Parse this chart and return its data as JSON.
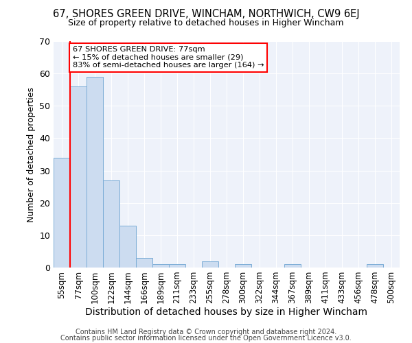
{
  "title": "67, SHORES GREEN DRIVE, WINCHAM, NORTHWICH, CW9 6EJ",
  "subtitle": "Size of property relative to detached houses in Higher Wincham",
  "xlabel": "Distribution of detached houses by size in Higher Wincham",
  "ylabel": "Number of detached properties",
  "categories": [
    "55sqm",
    "77sqm",
    "100sqm",
    "122sqm",
    "144sqm",
    "166sqm",
    "189sqm",
    "211sqm",
    "233sqm",
    "255sqm",
    "278sqm",
    "300sqm",
    "322sqm",
    "344sqm",
    "367sqm",
    "389sqm",
    "411sqm",
    "433sqm",
    "456sqm",
    "478sqm",
    "500sqm"
  ],
  "values": [
    34,
    56,
    59,
    27,
    13,
    3,
    1,
    1,
    0,
    2,
    0,
    1,
    0,
    0,
    1,
    0,
    0,
    0,
    0,
    1,
    0
  ],
  "bar_color": "#ccdcf0",
  "bar_edge_color": "#7aacd6",
  "red_line_x": 0.5,
  "annotation_text": "67 SHORES GREEN DRIVE: 77sqm\n← 15% of detached houses are smaller (29)\n83% of semi-detached houses are larger (164) →",
  "ylim": [
    0,
    70
  ],
  "yticks": [
    0,
    10,
    20,
    30,
    40,
    50,
    60,
    70
  ],
  "bg_color": "#eef2fa",
  "footer1": "Contains HM Land Registry data © Crown copyright and database right 2024.",
  "footer2": "Contains public sector information licensed under the Open Government Licence v3.0."
}
